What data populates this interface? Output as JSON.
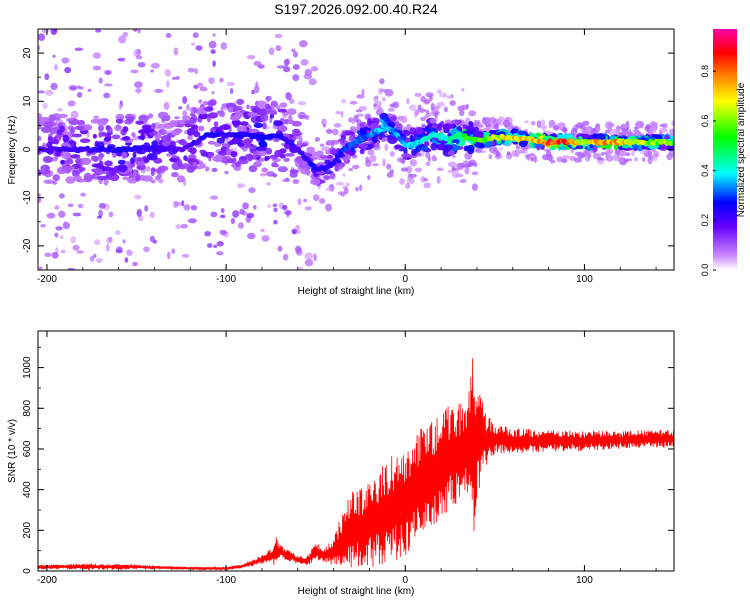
{
  "chart_data": [
    {
      "type": "heatmap",
      "title": "S197.2026.092.00.40.R24",
      "xlabel": "Height of straight line (km)",
      "ylabel": "Frequency (Hz)",
      "xlim": [
        -205,
        150
      ],
      "ylim": [
        -25,
        25
      ],
      "xticks": [
        -200,
        -100,
        0,
        100
      ],
      "xtick_labels": [
        "-200",
        "-100",
        "0",
        "100"
      ],
      "yticks": [
        -20,
        -10,
        0,
        10,
        20
      ],
      "ytick_labels": [
        "-20",
        "-10",
        "0",
        "10",
        "20"
      ],
      "colorbar": {
        "label": "Normalized spectral amplitude",
        "range": [
          0,
          0.97
        ],
        "ticks": [
          0.0,
          0.2,
          0.4,
          0.6,
          0.8
        ],
        "tick_labels": [
          "0.0",
          "0.2",
          "0.4",
          "0.6",
          "0.8"
        ],
        "colors": [
          "#ffffff",
          "#cc88ff",
          "#6600ff",
          "#0000ff",
          "#00ffff",
          "#00ff00",
          "#ffff00",
          "#ff8800",
          "#ff0000",
          "#ff00aa"
        ]
      },
      "ridge": {
        "x": [
          -205,
          -180,
          -160,
          -140,
          -125,
          -110,
          -100,
          -90,
          -80,
          -70,
          -60,
          -55,
          -50,
          -45,
          -40,
          -35,
          -30,
          -25,
          -20,
          -15,
          -12,
          -8,
          -5,
          0,
          5,
          10,
          15,
          20,
          25,
          30,
          40,
          50,
          60,
          70,
          80,
          90,
          100,
          110,
          120,
          130,
          140,
          150
        ],
        "freq": [
          0,
          0,
          0,
          0.5,
          0,
          3,
          3,
          3,
          2.5,
          3,
          0,
          -2,
          -4,
          -4,
          -3,
          0,
          1,
          2,
          3,
          4,
          5,
          4,
          3,
          1,
          1,
          2,
          3,
          3,
          2,
          3,
          2,
          2.5,
          2.5,
          2,
          1.5,
          1.5,
          1.5,
          1.5,
          1.5,
          1.5,
          1.5,
          1.5
        ],
        "amplitude": [
          0.22,
          0.25,
          0.28,
          0.25,
          0.2,
          0.28,
          0.25,
          0.27,
          0.3,
          0.28,
          0.22,
          0.25,
          0.3,
          0.28,
          0.28,
          0.32,
          0.35,
          0.36,
          0.38,
          0.4,
          0.42,
          0.4,
          0.38,
          0.4,
          0.42,
          0.44,
          0.46,
          0.48,
          0.5,
          0.55,
          0.62,
          0.72,
          0.82,
          0.8,
          0.97,
          0.95,
          0.7,
          0.9,
          0.82,
          0.7,
          0.68,
          0.65
        ]
      }
    },
    {
      "type": "line",
      "xlabel": "Height of straight line (km)",
      "ylabel": "SNR (10 * v/v)",
      "xlim": [
        -205,
        150
      ],
      "ylim": [
        0,
        1180
      ],
      "xticks": [
        -200,
        -100,
        0,
        100
      ],
      "xtick_labels": [
        "-200",
        "-100",
        "0",
        "100"
      ],
      "yticks": [
        0,
        200,
        400,
        600,
        800,
        1000
      ],
      "ytick_labels": [
        "0",
        "200",
        "400",
        "600",
        "800",
        "1000"
      ],
      "series": [
        {
          "name": "SNR",
          "color": "#ff0000",
          "envelope_x": [
            -205,
            -180,
            -150,
            -130,
            -110,
            -100,
            -90,
            -80,
            -75,
            -72,
            -70,
            -65,
            -60,
            -55,
            -50,
            -45,
            -40,
            -35,
            -30,
            -25,
            -20,
            -15,
            -10,
            -5,
            0,
            5,
            10,
            15,
            20,
            25,
            30,
            35,
            38,
            40,
            45,
            50,
            60,
            80,
            100,
            120,
            140,
            150
          ],
          "envelope_mean": [
            20,
            22,
            20,
            15,
            12,
            12,
            25,
            55,
            75,
            90,
            95,
            75,
            55,
            50,
            95,
            75,
            100,
            140,
            190,
            210,
            230,
            260,
            290,
            320,
            330,
            400,
            460,
            480,
            520,
            560,
            590,
            600,
            610,
            640,
            650,
            650,
            640,
            640,
            640,
            645,
            650,
            650
          ],
          "envelope_amp": [
            12,
            18,
            15,
            8,
            8,
            8,
            12,
            25,
            40,
            90,
            40,
            30,
            25,
            25,
            60,
            40,
            80,
            180,
            220,
            220,
            240,
            260,
            280,
            300,
            300,
            280,
            300,
            300,
            280,
            300,
            280,
            280,
            520,
            350,
            150,
            80,
            70,
            60,
            55,
            50,
            50,
            50
          ]
        }
      ]
    }
  ]
}
